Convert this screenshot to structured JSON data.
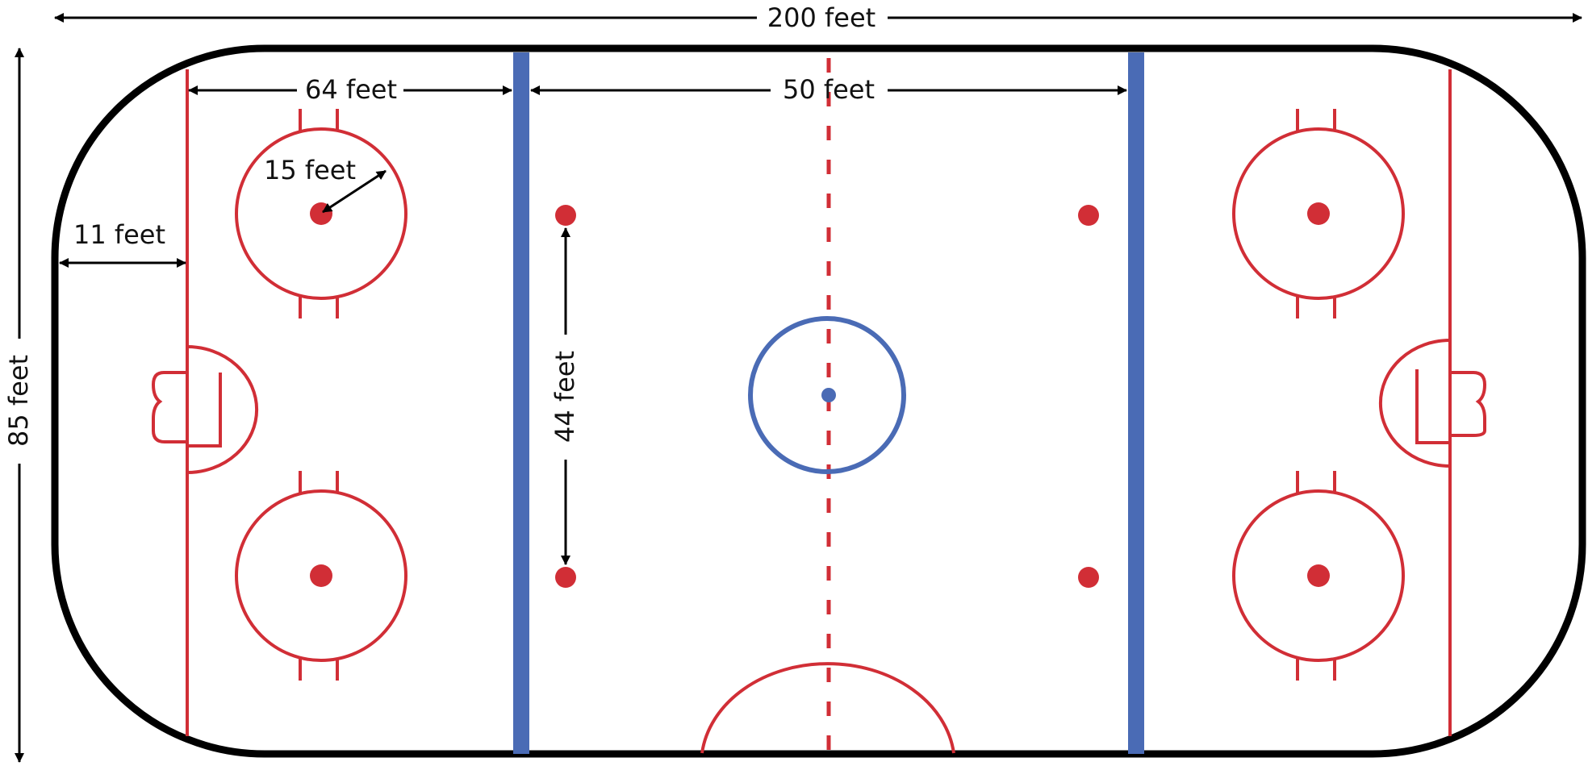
{
  "dimensions": {
    "length": "200 feet",
    "width": "85 feet",
    "goal_line_to_blue_line": "64 feet",
    "neutral_zone": "50 feet",
    "faceoff_circle_radius": "15 feet",
    "end_boards_to_goal_line": "11 feet",
    "faceoff_dot_spacing": "44 feet"
  },
  "colors": {
    "boards": "#000000",
    "red_lines": "#d12e36",
    "blue_lines": "#4a6bb5",
    "arrows": "#000000",
    "background": "#ffffff"
  }
}
